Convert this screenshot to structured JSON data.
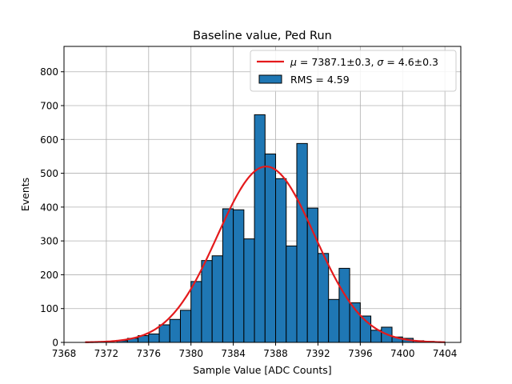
{
  "chart_data": {
    "type": "bar",
    "title": "Baseline value, Ped Run",
    "xlabel": "Sample Value [ADC Counts]",
    "ylabel": "Events",
    "xlim": [
      7368,
      7405.5
    ],
    "ylim": [
      0,
      875
    ],
    "grid": true,
    "legend_position": "top-right",
    "x_ticks": [
      7368,
      7372,
      7376,
      7380,
      7384,
      7388,
      7392,
      7396,
      7400,
      7404
    ],
    "y_ticks": [
      0,
      100,
      200,
      300,
      400,
      500,
      600,
      700,
      800
    ],
    "bin_width": 1,
    "bin_edges_start": 7373,
    "bar_color": "#1f77b4",
    "histogram": {
      "name": "RMS = 4.59",
      "bin_left_edges": [
        7373,
        7374,
        7375,
        7376,
        7377,
        7378,
        7379,
        7380,
        7381,
        7382,
        7383,
        7384,
        7385,
        7386,
        7387,
        7388,
        7389,
        7390,
        7391,
        7392,
        7393,
        7394,
        7395,
        7396,
        7397,
        7398,
        7399,
        7400,
        7401,
        7402,
        7403
      ],
      "counts": [
        5,
        12,
        20,
        25,
        52,
        68,
        95,
        180,
        242,
        256,
        395,
        392,
        306,
        673,
        557,
        484,
        285,
        588,
        397,
        263,
        127,
        219,
        117,
        78,
        36,
        45,
        16,
        12,
        5,
        3,
        1
      ]
    },
    "fit": {
      "name": "μ = 7387.1±0.3, σ = 4.6±0.3",
      "name_parts": {
        "mu_sym": "μ",
        "mu_text": " = 7387.1±0.3, ",
        "sigma_sym": "σ",
        "sigma_text": " = 4.6±0.3"
      },
      "type": "gaussian",
      "mu": 7387.1,
      "sigma": 4.6,
      "amplitude": 520,
      "x_range": [
        7370,
        7404
      ],
      "color": "#e41a1c"
    }
  }
}
